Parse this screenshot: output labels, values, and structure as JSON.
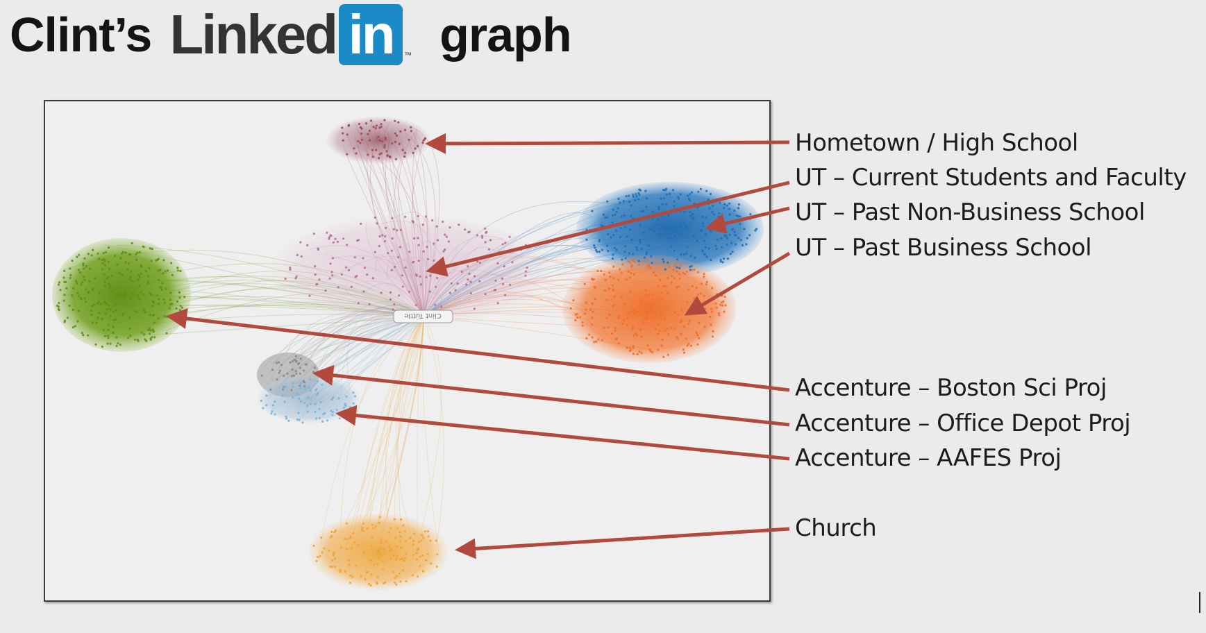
{
  "title": {
    "prefix": "Clint’s",
    "brand_word": "Linked",
    "brand_badge": "in",
    "trademark": "™",
    "suffix": "graph"
  },
  "graph": {
    "center_label": "Clint Tuttle",
    "clusters": [
      {
        "id": "hometown",
        "label": "Hometown / High School",
        "color": "#9b4a5c"
      },
      {
        "id": "ut-current",
        "label": "UT – Current Students and Faculty",
        "color": "#b56f93"
      },
      {
        "id": "ut-non-business",
        "label": "UT – Past Non-Business School",
        "color": "#1f6fb5"
      },
      {
        "id": "ut-business",
        "label": "UT – Past Business School",
        "color": "#ef6e2a"
      },
      {
        "id": "boston-sci",
        "label": "Accenture – Boston Sci Proj",
        "color": "#5e8f12"
      },
      {
        "id": "office-depot",
        "label": "Accenture – Office Depot Proj",
        "color": "#8a8a8a"
      },
      {
        "id": "aafes",
        "label": "Accenture – AAFES Proj",
        "color": "#7ab3d8"
      },
      {
        "id": "church",
        "label": "Church",
        "color": "#eea336"
      }
    ],
    "arrow_color": "#b2493d"
  }
}
